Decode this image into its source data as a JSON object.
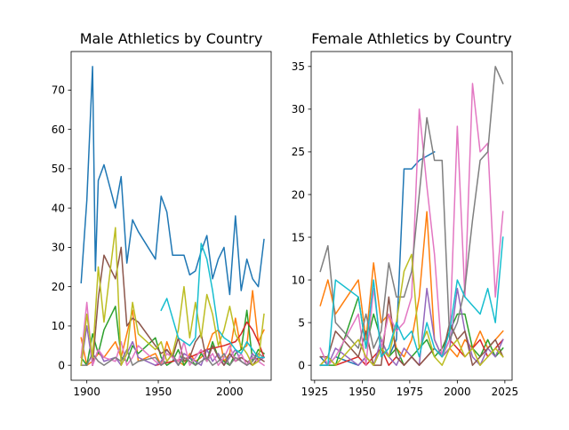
{
  "chart_data": [
    {
      "type": "line",
      "title": "Male Athletics by Country",
      "xlabel": "",
      "ylabel": "",
      "xlim": [
        1889,
        2029
      ],
      "ylim": [
        -3.8,
        79.8
      ],
      "xticks": [
        1900,
        1950,
        2000
      ],
      "yticks": [
        0,
        10,
        20,
        30,
        40,
        50,
        60,
        70
      ],
      "grid": false,
      "series": [
        {
          "color": "#1f77b4",
          "x": [
            1896,
            1900,
            1904,
            1906,
            1908,
            1912,
            1920,
            1924,
            1928,
            1932,
            1936,
            1948,
            1952,
            1956,
            1960,
            1964,
            1968,
            1972,
            1976,
            1980,
            1984,
            1988,
            1992,
            1996,
            2000,
            2004,
            2008,
            2012,
            2016,
            2020,
            2024
          ],
          "y": [
            21,
            42,
            76,
            24,
            47,
            51,
            40,
            48,
            26,
            37,
            34,
            27,
            43,
            39,
            28,
            28,
            28,
            23,
            24,
            29,
            33,
            22,
            27,
            30,
            18,
            38,
            19,
            27,
            22,
            20,
            32
          ]
        },
        {
          "color": "#ff7f0e",
          "x": [
            1896,
            1900,
            1904,
            1908,
            1912,
            1920,
            1924,
            1928,
            1932,
            1936,
            1948,
            1952,
            1956,
            1960,
            1964,
            1968,
            1972,
            1976,
            1980,
            1984,
            1988,
            1992,
            1996,
            2000,
            2004,
            2008,
            2012,
            2016,
            2020,
            2024
          ],
          "y": [
            7,
            0,
            1,
            3,
            2,
            6,
            2,
            8,
            14,
            1,
            3,
            0,
            6,
            2,
            1,
            0,
            3,
            1,
            2,
            4,
            8,
            9,
            1,
            3,
            12,
            4,
            5,
            19,
            6,
            9
          ]
        },
        {
          "color": "#2ca02c",
          "x": [
            1896,
            1900,
            1904,
            1908,
            1912,
            1920,
            1924,
            1928,
            1932,
            1936,
            1948,
            1952,
            1956,
            1960,
            1964,
            1968,
            1972,
            1976,
            1980,
            1984,
            1988,
            1992,
            1996,
            2000,
            2004,
            2008,
            2012,
            2016,
            2020,
            2024
          ],
          "y": [
            2,
            0,
            8,
            3,
            9,
            15,
            2,
            1,
            5,
            3,
            7,
            2,
            0,
            1,
            4,
            0,
            2,
            0,
            3,
            1,
            6,
            2,
            1,
            0,
            3,
            4,
            14,
            1,
            4,
            3
          ]
        },
        {
          "color": "#d62728",
          "x": [
            1948,
            1960,
            1972,
            1984,
            1996,
            2004,
            2008,
            2012,
            2016,
            2020,
            2024
          ],
          "y": [
            0,
            1,
            2,
            4,
            5,
            6,
            8,
            11,
            9,
            6,
            2
          ]
        },
        {
          "color": "#9467bd",
          "x": [
            1896,
            1900,
            1904,
            1908,
            1912,
            1920,
            1924,
            1928,
            1932,
            1936,
            1948,
            1952,
            1956,
            1960,
            1964,
            1968,
            1972,
            1976,
            1980,
            1984,
            1988,
            1992,
            1996,
            2000,
            2004,
            2008,
            2012,
            2016,
            2020,
            2024
          ],
          "y": [
            0,
            10,
            0,
            4,
            1,
            2,
            0,
            3,
            6,
            2,
            0,
            1,
            4,
            2,
            0,
            3,
            2,
            1,
            0,
            4,
            1,
            3,
            0,
            2,
            4,
            1,
            0,
            3,
            1,
            2
          ]
        },
        {
          "color": "#8c564b",
          "x": [
            1904,
            1908,
            1912,
            1920,
            1924,
            1928,
            1932,
            1936,
            1948,
            1952,
            1956,
            1960,
            1964,
            1968,
            1972,
            1976,
            1980,
            1984,
            1988,
            1992,
            1996,
            2000,
            2004,
            2008,
            2012,
            2016,
            2020,
            2024
          ],
          "y": [
            0,
            17,
            28,
            22,
            30,
            10,
            12,
            11,
            5,
            3,
            4,
            2,
            7,
            1,
            2,
            6,
            8,
            1,
            5,
            2,
            0,
            3,
            1,
            2,
            1,
            0,
            2,
            1
          ]
        },
        {
          "color": "#e377c2",
          "x": [
            1896,
            1900,
            1904,
            1908,
            1912,
            1920,
            1924,
            1928,
            1932,
            1936,
            1948,
            1952,
            1956,
            1960,
            1964,
            1968,
            1972,
            1976,
            1980,
            1984,
            1988,
            1992,
            1996,
            2000,
            2004,
            2008,
            2012,
            2016,
            2020,
            2024
          ],
          "y": [
            2,
            16,
            0,
            4,
            2,
            1,
            6,
            0,
            2,
            5,
            1,
            0,
            3,
            2,
            1,
            6,
            0,
            2,
            4,
            1,
            3,
            0,
            2,
            5,
            1,
            3,
            0,
            2,
            1,
            0
          ]
        },
        {
          "color": "#7f7f7f",
          "x": [
            1896,
            1900,
            1904,
            1908,
            1912,
            1920,
            1924,
            1928,
            1932,
            1936,
            1948,
            1952,
            1956,
            1960,
            1964,
            1968,
            1972,
            1976,
            1980,
            1984,
            1988,
            1992,
            1996,
            2000,
            2004,
            2008,
            2012,
            2016,
            2020,
            2024
          ],
          "y": [
            0,
            0,
            3,
            1,
            0,
            2,
            1,
            4,
            0,
            1,
            2,
            0,
            1,
            3,
            0,
            2,
            1,
            0,
            1,
            2,
            0,
            1,
            3,
            0,
            2,
            1,
            0,
            1,
            3,
            2
          ]
        },
        {
          "color": "#bcbd22",
          "x": [
            1896,
            1900,
            1904,
            1908,
            1912,
            1920,
            1924,
            1928,
            1932,
            1936,
            1948,
            1952,
            1956,
            1960,
            1964,
            1968,
            1972,
            1976,
            1980,
            1984,
            1988,
            1992,
            1996,
            2000,
            2004,
            2008,
            2012,
            2016,
            2020,
            2024
          ],
          "y": [
            0,
            13,
            2,
            25,
            11,
            35,
            0,
            3,
            16,
            8,
            4,
            6,
            1,
            3,
            9,
            20,
            7,
            16,
            7,
            18,
            13,
            5,
            9,
            15,
            8,
            5,
            3,
            0,
            1,
            13
          ]
        },
        {
          "color": "#17becf",
          "x": [
            1952,
            1956,
            1960,
            1964,
            1968,
            1972,
            1976,
            1980,
            1984,
            1988,
            1992,
            1996,
            2000,
            2004,
            2008,
            2012,
            2016,
            2020,
            2024
          ],
          "y": [
            14,
            17,
            12,
            7,
            6,
            5,
            7,
            31,
            27,
            19,
            9,
            7,
            6,
            4,
            3,
            6,
            4,
            2,
            2
          ]
        }
      ]
    },
    {
      "type": "line",
      "title": "Female Athletics by Country",
      "xlabel": "",
      "ylabel": "",
      "xlim": [
        1923.2,
        2028.8
      ],
      "ylim": [
        -1.75,
        36.75
      ],
      "xticks": [
        1925,
        1950,
        1975,
        2000,
        2025
      ],
      "yticks": [
        0,
        5,
        10,
        15,
        20,
        25,
        30,
        35
      ],
      "grid": false,
      "series": [
        {
          "color": "#1f77b4",
          "x": [
            1928,
            1932,
            1936,
            1948,
            1952,
            1956,
            1960,
            1964,
            1968,
            1972,
            1976,
            1980,
            1984,
            1988
          ],
          "y": [
            1,
            0,
            1,
            0,
            1,
            0,
            2,
            1,
            3,
            23,
            23,
            24,
            24.5,
            25
          ]
        },
        {
          "color": "#ff7f0e",
          "x": [
            1928,
            1932,
            1936,
            1948,
            1952,
            1956,
            1960,
            1964,
            1968,
            1972,
            1976,
            1980,
            1984,
            1988,
            1992,
            1996,
            2000,
            2004,
            2008,
            2012,
            2016,
            2020,
            2024
          ],
          "y": [
            7,
            10,
            6,
            10,
            3,
            12,
            5,
            6,
            2,
            1,
            3,
            8,
            18,
            3,
            1,
            2,
            1,
            3,
            2,
            4,
            2,
            3,
            4
          ]
        },
        {
          "color": "#2ca02c",
          "x": [
            1928,
            1932,
            1936,
            1948,
            1952,
            1956,
            1960,
            1964,
            1968,
            1972,
            1976,
            1980,
            1984,
            1988,
            1992,
            1996,
            2000,
            2004,
            2008,
            2012,
            2016,
            2020,
            2024
          ],
          "y": [
            0,
            0,
            0,
            8,
            2,
            6,
            3,
            1,
            2,
            0,
            1,
            2,
            3,
            1,
            2,
            4,
            6,
            6,
            2,
            1,
            3,
            1,
            2
          ]
        },
        {
          "color": "#d62728",
          "x": [
            1928,
            1932,
            1936,
            1948,
            1952,
            1956,
            1960,
            1964,
            1968,
            1972,
            1976,
            1980,
            1984,
            1988,
            1992,
            1996,
            2000,
            2004,
            2008,
            2012,
            2016,
            2020,
            2024
          ],
          "y": [
            0,
            1,
            0,
            1,
            0,
            1,
            2,
            0,
            1,
            0,
            1,
            0,
            1,
            2,
            1,
            3,
            2,
            1,
            2,
            3,
            1,
            2,
            3
          ]
        },
        {
          "color": "#9467bd",
          "x": [
            1928,
            1932,
            1936,
            1948,
            1952,
            1956,
            1960,
            1964,
            1968,
            1972,
            1976,
            1980,
            1984,
            1988,
            1992,
            1996,
            2000,
            2004,
            2008,
            2012,
            2016,
            2020,
            2024
          ],
          "y": [
            0,
            0,
            2,
            0,
            1,
            0,
            3,
            1,
            0,
            2,
            1,
            0,
            9,
            3,
            1,
            2,
            9,
            4,
            1,
            0,
            2,
            1,
            3
          ]
        },
        {
          "color": "#8c564b",
          "x": [
            1928,
            1932,
            1936,
            1948,
            1952,
            1956,
            1960,
            1964,
            1968,
            1972,
            1976,
            1980,
            1984,
            1988,
            1992,
            1996,
            2000,
            2004,
            2008,
            2012,
            2016,
            2020,
            2024
          ],
          "y": [
            1,
            1,
            4,
            1,
            4,
            0,
            0,
            8,
            1,
            0,
            1,
            0,
            1,
            2,
            1,
            5,
            3,
            4,
            0,
            1,
            2,
            3,
            1
          ]
        },
        {
          "color": "#e377c2",
          "x": [
            1928,
            1932,
            1936,
            1948,
            1952,
            1956,
            1960,
            1964,
            1968,
            1972,
            1976,
            1980,
            1984,
            1988,
            1992,
            1996,
            2000,
            2004,
            2008,
            2012,
            2016,
            2020,
            2024
          ],
          "y": [
            2,
            0,
            1,
            6,
            0,
            9,
            2,
            6,
            4,
            5,
            8,
            30,
            21,
            13,
            1,
            3,
            28,
            8,
            33,
            25,
            26,
            8,
            18
          ]
        },
        {
          "color": "#7f7f7f",
          "x": [
            1928,
            1932,
            1936,
            1948,
            1952,
            1956,
            1960,
            1964,
            1968,
            1972,
            1976,
            1980,
            1984,
            1988,
            1992,
            1996,
            2000,
            2004,
            2008,
            2012,
            2016,
            2020,
            2024
          ],
          "y": [
            11,
            14,
            5,
            2,
            6,
            2,
            4,
            12,
            8,
            8,
            11,
            20,
            29,
            24,
            24,
            3,
            5,
            9,
            17,
            24,
            25,
            35,
            33
          ]
        },
        {
          "color": "#bcbd22",
          "x": [
            1928,
            1932,
            1936,
            1948,
            1952,
            1956,
            1960,
            1964,
            1968,
            1972,
            1976,
            1980,
            1984,
            1988,
            1992,
            1996,
            2000,
            2004,
            2008,
            2012,
            2016,
            2020,
            2024
          ],
          "y": [
            0,
            1,
            0,
            3,
            1,
            0,
            2,
            1,
            5,
            11,
            13,
            2,
            4,
            1,
            0,
            2,
            3,
            1,
            2,
            0,
            1,
            2,
            1
          ]
        },
        {
          "color": "#17becf",
          "x": [
            1928,
            1932,
            1936,
            1948,
            1952,
            1956,
            1960,
            1964,
            1968,
            1972,
            1976,
            1980,
            1984,
            1988,
            1992,
            1996,
            2000,
            2004,
            2008,
            2012,
            2016,
            2020,
            2024
          ],
          "y": [
            0,
            0,
            10,
            8,
            2,
            10,
            1,
            2,
            5,
            3,
            4,
            1,
            5,
            2,
            1,
            4,
            10,
            8,
            7,
            6,
            9,
            5,
            15
          ]
        }
      ]
    }
  ]
}
